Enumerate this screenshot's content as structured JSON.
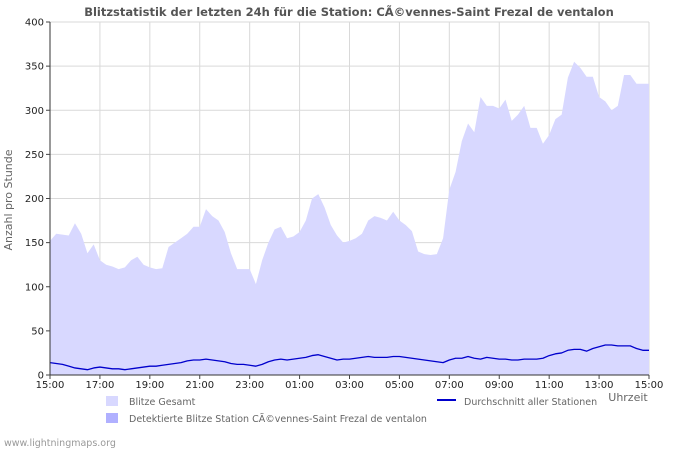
{
  "chart_data": {
    "type": "area",
    "title": "Blitzstatistik der letzten 24h für die Station: CÃ©vennes-Saint Frezal de ventalon",
    "ylabel": "Anzahl pro Stunde",
    "xlabel": "Uhrzeit",
    "ylim": [
      0,
      400
    ],
    "yticks": [
      0,
      50,
      100,
      150,
      200,
      250,
      300,
      350,
      400
    ],
    "xlim_hours": [
      0,
      24
    ],
    "xticks": [
      {
        "hour": 0,
        "label": "15:00"
      },
      {
        "hour": 2,
        "label": "17:00"
      },
      {
        "hour": 4,
        "label": "19:00"
      },
      {
        "hour": 6,
        "label": "21:00"
      },
      {
        "hour": 8,
        "label": "23:00"
      },
      {
        "hour": 10,
        "label": "01:00"
      },
      {
        "hour": 12,
        "label": "03:00"
      },
      {
        "hour": 14,
        "label": "05:00"
      },
      {
        "hour": 16,
        "label": "07:00"
      },
      {
        "hour": 18,
        "label": "09:00"
      },
      {
        "hour": 20,
        "label": "11:00"
      },
      {
        "hour": 22,
        "label": "13:00"
      },
      {
        "hour": 24,
        "label": "15:00"
      }
    ],
    "x_hours": [
      0,
      0.25,
      0.5,
      0.75,
      1,
      1.25,
      1.5,
      1.75,
      2,
      2.25,
      2.5,
      2.75,
      3,
      3.25,
      3.5,
      3.75,
      4,
      4.25,
      4.5,
      4.75,
      5,
      5.25,
      5.5,
      5.75,
      6,
      6.25,
      6.5,
      6.75,
      7,
      7.25,
      7.5,
      7.75,
      8,
      8.25,
      8.5,
      8.75,
      9,
      9.25,
      9.5,
      9.75,
      10,
      10.25,
      10.5,
      10.75,
      11,
      11.25,
      11.5,
      11.75,
      12,
      12.25,
      12.5,
      12.75,
      13,
      13.25,
      13.5,
      13.75,
      14,
      14.25,
      14.5,
      14.75,
      15,
      15.25,
      15.5,
      15.75,
      16,
      16.25,
      16.5,
      16.75,
      17,
      17.25,
      17.5,
      17.75,
      18,
      18.25,
      18.5,
      18.75,
      19,
      19.25,
      19.5,
      19.75,
      20,
      20.25,
      20.5,
      20.75,
      21,
      21.25,
      21.5,
      21.75,
      22,
      22.25,
      22.5,
      22.75,
      23,
      23.25,
      23.5,
      23.75,
      24
    ],
    "series": [
      {
        "name": "Blitze Gesamt",
        "style": "area",
        "color": "#d8d8ff",
        "values": [
          152,
          160,
          159,
          158,
          172,
          160,
          138,
          148,
          130,
          125,
          123,
          120,
          122,
          130,
          134,
          125,
          122,
          120,
          121,
          145,
          150,
          155,
          160,
          168,
          168,
          188,
          180,
          175,
          162,
          138,
          120,
          120,
          120,
          103,
          130,
          150,
          165,
          168,
          155,
          157,
          162,
          175,
          200,
          205,
          190,
          170,
          158,
          150,
          152,
          155,
          160,
          175,
          180,
          178,
          175,
          185,
          175,
          170,
          163,
          140,
          137,
          136,
          137,
          155,
          210,
          230,
          265,
          285,
          275,
          315,
          305,
          305,
          302,
          312,
          288,
          295,
          305,
          280,
          280,
          262,
          272,
          290,
          295,
          337,
          355,
          348,
          338,
          338,
          315,
          310,
          300,
          305,
          340,
          340,
          330,
          330,
          330
        ]
      },
      {
        "name": "Detektierte Blitze Station CÃ©vennes-Saint Frezal de ventalon",
        "style": "area",
        "color": "#b0b0ff",
        "values": [
          0,
          0,
          0,
          0,
          0,
          0,
          0,
          0,
          0,
          0,
          0,
          0,
          0,
          0,
          0,
          0,
          0,
          0,
          0,
          0,
          0,
          0,
          0,
          0,
          0,
          0,
          0,
          0,
          0,
          0,
          0,
          0,
          0,
          0,
          0,
          0,
          0,
          0,
          0,
          0,
          0,
          0,
          0,
          0,
          0,
          0,
          0,
          0,
          0,
          0,
          0,
          0,
          0,
          0,
          0,
          0,
          0,
          0,
          0,
          0,
          0,
          0,
          0,
          0,
          0,
          0,
          0,
          0,
          0,
          0,
          0,
          0,
          0,
          0,
          0,
          0,
          0,
          0,
          0,
          0,
          0,
          0,
          0,
          0,
          0,
          0,
          0,
          0,
          0,
          0,
          0,
          0,
          0,
          0,
          0,
          0,
          0
        ]
      },
      {
        "name": "Durchschnitt aller Stationen",
        "style": "line",
        "color": "#0000cc",
        "values": [
          14,
          13,
          12,
          10,
          8,
          7,
          6,
          8,
          9,
          8,
          7,
          7,
          6,
          7,
          8,
          9,
          10,
          10,
          11,
          12,
          13,
          14,
          16,
          17,
          17,
          18,
          17,
          16,
          15,
          13,
          12,
          12,
          11,
          10,
          12,
          15,
          17,
          18,
          17,
          18,
          19,
          20,
          22,
          23,
          21,
          19,
          17,
          18,
          18,
          19,
          20,
          21,
          20,
          20,
          20,
          21,
          21,
          20,
          19,
          18,
          17,
          16,
          15,
          14,
          17,
          19,
          19,
          21,
          19,
          18,
          20,
          19,
          18,
          18,
          17,
          17,
          18,
          18,
          18,
          19,
          22,
          24,
          25,
          28,
          29,
          29,
          27,
          30,
          32,
          34,
          34,
          33,
          33,
          33,
          30,
          28,
          28
        ]
      }
    ]
  },
  "legend": {
    "items": [
      {
        "label": "Blitze Gesamt",
        "color": "#d8d8ff"
      },
      {
        "label": "Detektierte Blitze Station CÃ©vennes-Saint Frezal de ventalon",
        "color": "#b0b0ff"
      },
      {
        "label": "Durchschnitt aller Stationen",
        "color": "#0000cc"
      }
    ]
  },
  "footer": {
    "source": "www.lightningmaps.org"
  }
}
